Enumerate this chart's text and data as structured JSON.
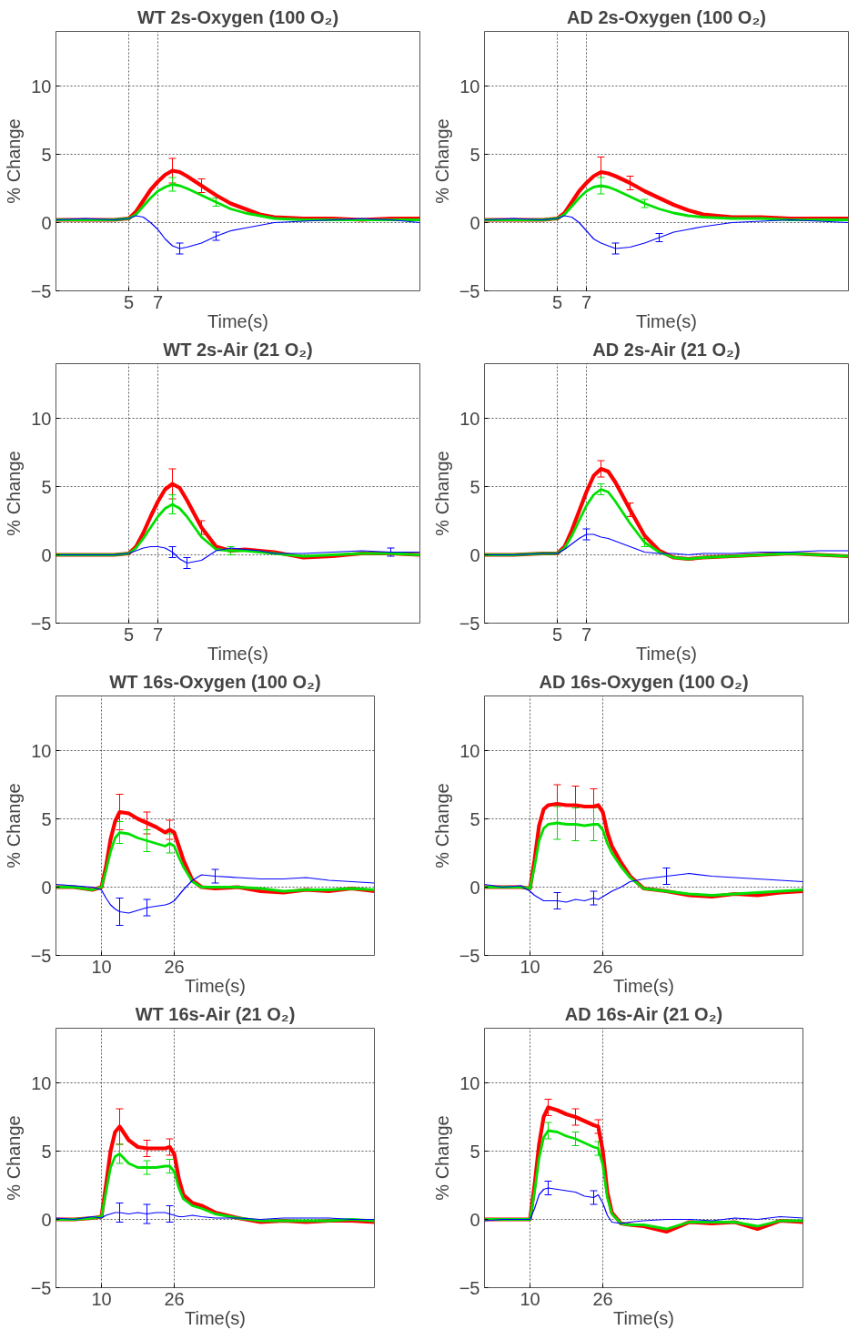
{
  "chart_data": [
    {
      "type": "line",
      "title": "WT 2s-Oxygen (100 O₂)",
      "xlabel": "Time(s)",
      "ylabel": "% Change",
      "xlim": [
        0,
        25
      ],
      "ylim": [
        -5,
        14
      ],
      "xticks": [
        5,
        7
      ],
      "yticks": [
        -5,
        0,
        5,
        10
      ],
      "grid": true,
      "x": [
        0,
        2,
        4,
        5,
        5.5,
        6,
        6.5,
        7,
        7.5,
        8,
        8.5,
        9,
        10,
        11,
        12,
        13,
        14,
        15,
        17,
        19,
        21,
        23,
        25
      ],
      "series": [
        {
          "color": "#ff0000",
          "values": [
            0.2,
            0.2,
            0.2,
            0.3,
            0.8,
            1.6,
            2.4,
            3.0,
            3.5,
            3.8,
            3.7,
            3.4,
            2.7,
            2.0,
            1.4,
            1.0,
            0.6,
            0.4,
            0.3,
            0.3,
            0.2,
            0.3,
            0.3
          ],
          "errors": [
            null,
            null,
            null,
            null,
            null,
            null,
            null,
            null,
            null,
            0.9,
            null,
            null,
            0.5,
            null,
            null,
            null,
            null,
            null,
            null,
            null,
            null,
            null,
            null
          ]
        },
        {
          "color": "#00e000",
          "values": [
            0.2,
            0.2,
            0.2,
            0.3,
            0.6,
            1.2,
            1.8,
            2.3,
            2.6,
            2.8,
            2.7,
            2.5,
            2.0,
            1.5,
            1.0,
            0.7,
            0.5,
            0.3,
            0.2,
            0.2,
            0.2,
            0.2,
            0.2
          ],
          "errors": [
            null,
            null,
            null,
            null,
            null,
            null,
            null,
            null,
            null,
            0.5,
            null,
            null,
            null,
            0.3,
            null,
            null,
            null,
            null,
            null,
            null,
            null,
            null,
            null
          ]
        },
        {
          "color": "#0000ff",
          "values": [
            0.2,
            0.3,
            0.2,
            0.3,
            0.5,
            0.4,
            0.0,
            -0.5,
            -1.2,
            -1.7,
            -1.9,
            -1.8,
            -1.5,
            -1.0,
            -0.6,
            -0.4,
            -0.2,
            0.0,
            0.1,
            0.2,
            0.3,
            0.2,
            0.0
          ],
          "errors": [
            null,
            null,
            null,
            null,
            null,
            null,
            null,
            null,
            null,
            null,
            0.4,
            null,
            null,
            0.3,
            null,
            null,
            null,
            null,
            null,
            null,
            null,
            null,
            null
          ]
        }
      ]
    },
    {
      "type": "line",
      "title": "AD 2s-Oxygen (100 O₂)",
      "xlabel": "Time(s)",
      "ylabel": "% Change",
      "xlim": [
        0,
        25
      ],
      "ylim": [
        -5,
        14
      ],
      "xticks": [
        5,
        7
      ],
      "yticks": [
        -5,
        0,
        5,
        10
      ],
      "grid": true,
      "x": [
        0,
        2,
        4,
        5,
        5.5,
        6,
        6.5,
        7,
        7.5,
        8,
        8.5,
        9,
        10,
        11,
        12,
        13,
        14,
        15,
        17,
        19,
        21,
        23,
        25
      ],
      "series": [
        {
          "color": "#ff0000",
          "values": [
            0.2,
            0.2,
            0.2,
            0.3,
            0.7,
            1.5,
            2.3,
            2.9,
            3.4,
            3.7,
            3.6,
            3.4,
            2.9,
            2.3,
            1.8,
            1.3,
            0.9,
            0.6,
            0.4,
            0.4,
            0.3,
            0.3,
            0.3
          ],
          "errors": [
            null,
            null,
            null,
            null,
            null,
            null,
            null,
            null,
            null,
            1.1,
            null,
            null,
            0.5,
            null,
            null,
            null,
            null,
            null,
            null,
            null,
            null,
            null,
            null
          ]
        },
        {
          "color": "#00e000",
          "values": [
            0.2,
            0.2,
            0.2,
            0.3,
            0.6,
            1.2,
            1.8,
            2.3,
            2.6,
            2.7,
            2.6,
            2.4,
            1.9,
            1.4,
            1.0,
            0.7,
            0.5,
            0.4,
            0.3,
            0.3,
            0.2,
            0.2,
            0.2
          ],
          "errors": [
            null,
            null,
            null,
            null,
            null,
            null,
            null,
            null,
            null,
            0.6,
            null,
            null,
            null,
            0.3,
            null,
            null,
            null,
            null,
            null,
            null,
            null,
            null,
            null
          ]
        },
        {
          "color": "#0000ff",
          "values": [
            0.2,
            0.3,
            0.2,
            0.3,
            0.5,
            0.4,
            0.0,
            -0.6,
            -1.2,
            -1.5,
            -1.7,
            -1.9,
            -1.8,
            -1.5,
            -1.1,
            -0.7,
            -0.5,
            -0.3,
            0.0,
            0.1,
            0.2,
            0.1,
            0.0
          ],
          "errors": [
            null,
            null,
            null,
            null,
            null,
            null,
            null,
            null,
            null,
            null,
            null,
            0.4,
            null,
            null,
            0.3,
            null,
            null,
            null,
            null,
            null,
            null,
            null,
            null
          ]
        }
      ]
    },
    {
      "type": "line",
      "title": "WT 2s-Air (21 O₂)",
      "xlabel": "Time(s)",
      "ylabel": "% Change",
      "xlim": [
        0,
        25
      ],
      "ylim": [
        -5,
        14
      ],
      "xticks": [
        5,
        7
      ],
      "yticks": [
        -5,
        0,
        5,
        10
      ],
      "grid": true,
      "x": [
        0,
        2,
        4,
        5,
        5.5,
        6,
        6.5,
        7,
        7.5,
        8,
        8.5,
        9,
        10,
        11,
        12,
        13,
        14,
        15,
        17,
        19,
        21,
        23,
        25
      ],
      "series": [
        {
          "color": "#ff0000",
          "values": [
            0,
            0,
            0,
            0.1,
            0.6,
            1.6,
            2.8,
            3.9,
            4.8,
            5.2,
            4.9,
            4.0,
            2.0,
            0.6,
            0.3,
            0.4,
            0.3,
            0.2,
            -0.2,
            -0.1,
            0.1,
            0.1,
            0.0
          ],
          "errors": [
            null,
            null,
            null,
            null,
            null,
            null,
            null,
            null,
            null,
            1.1,
            null,
            null,
            0.5,
            null,
            null,
            null,
            null,
            null,
            null,
            null,
            null,
            null,
            null
          ]
        },
        {
          "color": "#00e000",
          "values": [
            0,
            0,
            0,
            0.1,
            0.5,
            1.2,
            2.0,
            2.8,
            3.4,
            3.7,
            3.4,
            2.8,
            1.3,
            0.4,
            0.3,
            0.3,
            0.2,
            0.1,
            -0.1,
            0,
            0.1,
            0.1,
            0.0
          ],
          "errors": [
            null,
            null,
            null,
            null,
            null,
            null,
            null,
            null,
            null,
            0.7,
            null,
            null,
            null,
            null,
            0.3,
            null,
            null,
            null,
            null,
            null,
            null,
            null,
            null
          ]
        },
        {
          "color": "#0000ff",
          "values": [
            0,
            0,
            0,
            0.1,
            0.3,
            0.5,
            0.6,
            0.6,
            0.5,
            0.2,
            -0.3,
            -0.6,
            -0.4,
            0.3,
            0.5,
            0.4,
            0.3,
            0.1,
            0.1,
            0.2,
            0.3,
            0.2,
            0.2
          ],
          "errors": [
            null,
            null,
            null,
            null,
            null,
            null,
            null,
            null,
            null,
            0.4,
            null,
            0.4,
            null,
            null,
            null,
            null,
            null,
            null,
            null,
            null,
            null,
            0.3,
            null
          ]
        }
      ]
    },
    {
      "type": "line",
      "title": "AD 2s-Air (21 O₂)",
      "xlabel": "Time(s)",
      "ylabel": "% Change",
      "xlim": [
        0,
        25
      ],
      "ylim": [
        -5,
        14
      ],
      "xticks": [
        5,
        7
      ],
      "yticks": [
        -5,
        0,
        5,
        10
      ],
      "grid": true,
      "x": [
        0,
        2,
        4,
        5,
        5.5,
        6,
        6.5,
        7,
        7.5,
        8,
        8.5,
        9,
        10,
        11,
        12,
        13,
        14,
        15,
        17,
        19,
        21,
        23,
        25
      ],
      "series": [
        {
          "color": "#ff0000",
          "values": [
            0,
            0,
            0.1,
            0.1,
            0.6,
            1.8,
            3.2,
            4.6,
            5.8,
            6.3,
            6.1,
            5.3,
            3.3,
            1.4,
            0.3,
            -0.2,
            -0.3,
            -0.2,
            -0.1,
            0,
            0.1,
            0,
            -0.1
          ],
          "errors": [
            null,
            null,
            null,
            null,
            null,
            null,
            null,
            null,
            null,
            0.6,
            null,
            null,
            0.5,
            null,
            null,
            null,
            null,
            null,
            null,
            null,
            null,
            null,
            null
          ]
        },
        {
          "color": "#00e000",
          "values": [
            0,
            0,
            0.1,
            0.1,
            0.5,
            1.4,
            2.5,
            3.6,
            4.4,
            4.8,
            4.6,
            3.9,
            2.3,
            0.9,
            0.2,
            -0.2,
            -0.3,
            -0.2,
            -0.1,
            0,
            0.1,
            0,
            -0.1
          ],
          "errors": [
            null,
            null,
            null,
            null,
            null,
            null,
            null,
            null,
            null,
            0.4,
            null,
            null,
            null,
            0.3,
            null,
            null,
            null,
            null,
            null,
            null,
            null,
            null,
            null
          ]
        },
        {
          "color": "#0000ff",
          "values": [
            0,
            0,
            0.1,
            0.1,
            0.4,
            0.8,
            1.2,
            1.5,
            1.5,
            1.3,
            1.2,
            1.0,
            0.6,
            0.2,
            0.1,
            0.1,
            0.0,
            0.1,
            0.1,
            0.2,
            0.2,
            0.3,
            0.3
          ],
          "errors": [
            null,
            null,
            null,
            null,
            null,
            null,
            null,
            0.4,
            null,
            null,
            null,
            null,
            null,
            null,
            null,
            null,
            null,
            null,
            null,
            null,
            null,
            null,
            null
          ]
        }
      ]
    },
    {
      "type": "line",
      "title": "WT 16s-Oxygen (100 O₂)",
      "xlabel": "Time(s)",
      "ylabel": "% Change",
      "xlim": [
        0,
        70
      ],
      "ylim": [
        -5,
        14
      ],
      "xticks": [
        10,
        26
      ],
      "yticks": [
        -5,
        0,
        5,
        10
      ],
      "grid": true,
      "x": [
        0,
        4,
        8,
        10,
        11,
        12,
        13,
        14,
        16,
        18,
        20,
        22,
        24,
        25,
        26,
        27,
        28,
        30,
        32,
        35,
        40,
        45,
        50,
        55,
        60,
        65,
        70
      ],
      "series": [
        {
          "color": "#ff0000",
          "values": [
            0,
            0,
            -0.2,
            0,
            1.5,
            3.5,
            4.8,
            5.5,
            5.4,
            5.0,
            4.7,
            4.4,
            4.0,
            4.2,
            4.0,
            3.0,
            2.0,
            0.5,
            0,
            -0.1,
            0,
            -0.3,
            -0.4,
            -0.2,
            -0.3,
            -0.1,
            -0.3
          ],
          "errors": [
            null,
            null,
            null,
            null,
            null,
            null,
            null,
            1.3,
            null,
            null,
            0.8,
            null,
            null,
            0.7,
            null,
            null,
            null,
            null,
            null,
            null,
            null,
            null,
            null,
            null,
            null,
            null,
            null
          ]
        },
        {
          "color": "#00e000",
          "values": [
            0,
            0,
            -0.2,
            0,
            1.2,
            2.6,
            3.6,
            4.0,
            3.9,
            3.6,
            3.4,
            3.2,
            3.0,
            3.2,
            3.0,
            2.2,
            1.5,
            0.4,
            0,
            0,
            0,
            -0.1,
            -0.3,
            -0.2,
            -0.2,
            -0.1,
            -0.2
          ],
          "errors": [
            null,
            null,
            null,
            null,
            null,
            null,
            null,
            0.8,
            null,
            null,
            0.8,
            null,
            null,
            0.7,
            null,
            null,
            null,
            null,
            null,
            null,
            null,
            null,
            null,
            null,
            null,
            null,
            null
          ]
        },
        {
          "color": "#0000ff",
          "values": [
            0.2,
            0.1,
            0.0,
            -0.2,
            -0.8,
            -1.3,
            -1.6,
            -1.8,
            -1.9,
            -1.7,
            -1.5,
            -1.4,
            -1.3,
            -1.2,
            -1.0,
            -0.6,
            -0.2,
            0.5,
            0.9,
            0.8,
            0.7,
            0.6,
            0.6,
            0.7,
            0.5,
            0.4,
            0.3
          ],
          "errors": [
            null,
            null,
            null,
            null,
            null,
            null,
            null,
            1.0,
            null,
            null,
            0.6,
            null,
            null,
            null,
            null,
            null,
            null,
            null,
            null,
            0.5,
            null,
            null,
            null,
            null,
            null,
            null,
            null
          ]
        }
      ]
    },
    {
      "type": "line",
      "title": "AD 16s-Oxygen (100 O₂)",
      "xlabel": "Time(s)",
      "ylabel": "% Change",
      "xlim": [
        0,
        70
      ],
      "ylim": [
        -5,
        14
      ],
      "xticks": [
        10,
        26
      ],
      "yticks": [
        -5,
        0,
        5,
        10
      ],
      "grid": true,
      "x": [
        0,
        4,
        8,
        10,
        11,
        12,
        13,
        14,
        16,
        18,
        20,
        22,
        24,
        25,
        26,
        27,
        28,
        30,
        32,
        35,
        40,
        45,
        50,
        55,
        60,
        65,
        70
      ],
      "series": [
        {
          "color": "#ff0000",
          "values": [
            0,
            0,
            0,
            -0.1,
            2.0,
            4.5,
            5.7,
            6.0,
            6.1,
            6.0,
            6.0,
            5.9,
            5.9,
            6.0,
            5.5,
            4.0,
            3.0,
            1.8,
            0.8,
            -0.1,
            -0.3,
            -0.6,
            -0.7,
            -0.5,
            -0.6,
            -0.4,
            -0.3
          ],
          "errors": [
            null,
            null,
            null,
            null,
            null,
            null,
            null,
            null,
            1.4,
            null,
            1.4,
            null,
            1.3,
            null,
            null,
            null,
            null,
            null,
            null,
            null,
            null,
            null,
            null,
            null,
            null,
            null,
            null
          ]
        },
        {
          "color": "#00e000",
          "values": [
            0,
            0,
            0,
            -0.1,
            1.5,
            3.4,
            4.3,
            4.6,
            4.7,
            4.6,
            4.6,
            4.5,
            4.6,
            4.6,
            4.2,
            3.2,
            2.5,
            1.5,
            0.7,
            -0.1,
            -0.3,
            -0.5,
            -0.6,
            -0.5,
            -0.4,
            -0.3,
            -0.2
          ],
          "errors": [
            null,
            null,
            null,
            null,
            null,
            null,
            null,
            null,
            1.2,
            null,
            1.2,
            null,
            1.2,
            null,
            null,
            null,
            null,
            null,
            null,
            null,
            null,
            null,
            null,
            null,
            null,
            null,
            null
          ]
        },
        {
          "color": "#0000ff",
          "values": [
            0.2,
            0,
            0.1,
            -0.3,
            -0.6,
            -0.8,
            -1.0,
            -1.0,
            -1.0,
            -1.1,
            -0.9,
            -1.0,
            -0.8,
            -0.9,
            -0.7,
            -0.5,
            -0.3,
            0,
            0.4,
            0.6,
            0.8,
            1.0,
            0.8,
            0.7,
            0.6,
            0.5,
            0.4
          ],
          "errors": [
            null,
            null,
            null,
            null,
            null,
            null,
            null,
            null,
            0.6,
            null,
            null,
            null,
            0.5,
            null,
            null,
            null,
            null,
            null,
            null,
            null,
            0.6,
            null,
            null,
            null,
            null,
            null,
            null
          ]
        }
      ]
    },
    {
      "type": "line",
      "title": "WT 16s-Air (21 O₂)",
      "xlabel": "Time(s)",
      "ylabel": "% Change",
      "xlim": [
        0,
        70
      ],
      "ylim": [
        -5,
        14
      ],
      "xticks": [
        10,
        26
      ],
      "yticks": [
        -5,
        0,
        5,
        10
      ],
      "grid": true,
      "x": [
        0,
        4,
        8,
        10,
        11,
        12,
        13,
        14,
        16,
        18,
        20,
        22,
        24,
        25,
        26,
        27,
        28,
        30,
        32,
        35,
        40,
        45,
        50,
        55,
        60,
        65,
        70
      ],
      "series": [
        {
          "color": "#ff0000",
          "values": [
            0,
            0,
            0.1,
            0.2,
            2.5,
            5.0,
            6.4,
            6.8,
            5.8,
            5.3,
            5.2,
            5.2,
            5.2,
            5.3,
            4.8,
            3.0,
            1.8,
            1.2,
            1.0,
            0.5,
            0.1,
            -0.2,
            -0.1,
            -0.2,
            -0.1,
            -0.1,
            -0.2
          ],
          "errors": [
            null,
            null,
            null,
            null,
            null,
            null,
            null,
            1.3,
            null,
            null,
            0.6,
            null,
            null,
            0.6,
            null,
            null,
            null,
            null,
            null,
            null,
            null,
            null,
            null,
            null,
            null,
            null,
            null
          ]
        },
        {
          "color": "#00e000",
          "values": [
            0,
            0,
            0.1,
            0.2,
            2.0,
            3.8,
            4.6,
            4.8,
            4.1,
            3.8,
            3.8,
            3.8,
            3.9,
            3.9,
            3.5,
            2.3,
            1.5,
            1.0,
            0.8,
            0.4,
            0.1,
            -0.1,
            -0.1,
            -0.1,
            -0.1,
            0,
            -0.1
          ],
          "errors": [
            null,
            null,
            null,
            null,
            null,
            null,
            null,
            0.7,
            null,
            null,
            0.5,
            null,
            null,
            0.5,
            null,
            null,
            null,
            null,
            null,
            null,
            null,
            null,
            null,
            null,
            null,
            null,
            null
          ]
        },
        {
          "color": "#0000ff",
          "values": [
            0.1,
            0,
            0.2,
            0.1,
            0.3,
            0.4,
            0.5,
            0.5,
            0.4,
            0.5,
            0.4,
            0.5,
            0.5,
            0.4,
            0.3,
            0.2,
            0.2,
            0.3,
            0.2,
            0.1,
            0.1,
            0,
            0.1,
            0.1,
            0.1,
            0,
            0
          ],
          "errors": [
            null,
            null,
            null,
            null,
            null,
            null,
            null,
            0.7,
            null,
            null,
            0.7,
            null,
            null,
            0.6,
            null,
            null,
            null,
            null,
            null,
            null,
            null,
            null,
            null,
            null,
            null,
            null,
            null
          ]
        }
      ]
    },
    {
      "type": "line",
      "title": "AD 16s-Air (21 O₂)",
      "xlabel": "Time(s)",
      "ylabel": "% Change",
      "xlim": [
        0,
        70
      ],
      "ylim": [
        -5,
        14
      ],
      "xticks": [
        10,
        26
      ],
      "yticks": [
        -5,
        0,
        5,
        10
      ],
      "grid": true,
      "x": [
        0,
        4,
        8,
        10,
        11,
        12,
        13,
        14,
        16,
        18,
        20,
        22,
        24,
        25,
        26,
        27,
        28,
        30,
        32,
        35,
        40,
        45,
        50,
        55,
        60,
        65,
        70
      ],
      "series": [
        {
          "color": "#ff0000",
          "values": [
            0,
            0,
            0,
            0,
            2.5,
            5.5,
            7.5,
            8.2,
            8.0,
            7.7,
            7.5,
            7.2,
            6.9,
            6.8,
            5.0,
            2.0,
            0.5,
            -0.3,
            -0.4,
            -0.5,
            -0.9,
            -0.2,
            -0.3,
            -0.2,
            -0.7,
            -0.1,
            -0.2
          ],
          "errors": [
            null,
            null,
            null,
            null,
            null,
            null,
            null,
            0.6,
            null,
            null,
            0.6,
            null,
            null,
            0.5,
            null,
            null,
            null,
            null,
            null,
            null,
            null,
            null,
            null,
            null,
            null,
            null,
            null
          ]
        },
        {
          "color": "#00e000",
          "values": [
            0,
            0,
            0,
            0,
            2.0,
            4.5,
            6.0,
            6.5,
            6.4,
            6.1,
            5.9,
            5.6,
            5.3,
            5.2,
            4.0,
            1.6,
            0.4,
            -0.3,
            -0.4,
            -0.4,
            -0.7,
            -0.2,
            -0.2,
            -0.2,
            -0.5,
            -0.1,
            -0.1
          ],
          "errors": [
            null,
            null,
            null,
            null,
            null,
            null,
            null,
            0.6,
            null,
            null,
            0.5,
            null,
            null,
            0.5,
            null,
            null,
            null,
            null,
            null,
            null,
            null,
            null,
            null,
            null,
            null,
            null,
            null
          ]
        },
        {
          "color": "#0000ff",
          "values": [
            -0.1,
            0,
            0,
            0,
            0.8,
            1.8,
            2.2,
            2.3,
            2.2,
            2.1,
            2.0,
            1.7,
            1.6,
            1.8,
            1.2,
            0.3,
            -0.2,
            -0.3,
            -0.2,
            -0.1,
            0,
            0,
            -0.1,
            0.1,
            0,
            0.2,
            0.1
          ],
          "errors": [
            null,
            null,
            null,
            null,
            null,
            null,
            null,
            0.5,
            null,
            null,
            null,
            null,
            0.5,
            null,
            null,
            null,
            null,
            null,
            null,
            null,
            null,
            null,
            null,
            null,
            null,
            null,
            null
          ]
        }
      ]
    }
  ]
}
